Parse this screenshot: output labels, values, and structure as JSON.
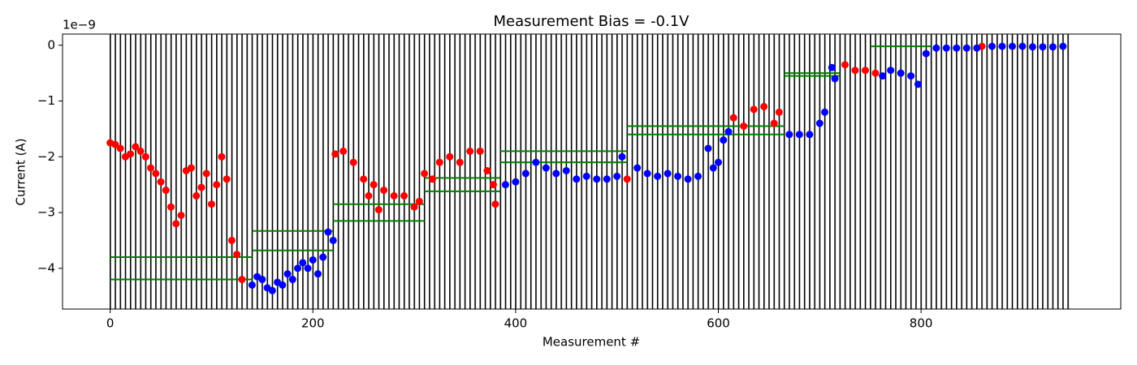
{
  "chart_data": {
    "type": "scatter",
    "title": "Measurement Bias = -0.1V",
    "xlabel": "Measurement #",
    "ylabel": "Current (A)",
    "offset_text": "1e−9",
    "xlim": [
      -47,
      997
    ],
    "ylim": [
      -4.73,
      0.2
    ],
    "xticks": [
      0,
      200,
      400,
      600,
      800
    ],
    "yticks": [
      {
        "value": -4,
        "label": "−4"
      },
      {
        "value": -3,
        "label": "−3"
      },
      {
        "value": -2,
        "label": "−2"
      },
      {
        "value": -1,
        "label": "−1"
      },
      0
    ],
    "hline_color": "#008000",
    "hlines": [
      {
        "x": [
          0,
          140
        ],
        "y": -3.8
      },
      {
        "x": [
          0,
          140
        ],
        "y": -4.2
      },
      {
        "x": [
          140,
          220
        ],
        "y": -3.33
      },
      {
        "x": [
          140,
          220
        ],
        "y": -3.68
      },
      {
        "x": [
          220,
          310
        ],
        "y": -2.85
      },
      {
        "x": [
          220,
          310
        ],
        "y": -3.15
      },
      {
        "x": [
          310,
          385
        ],
        "y": -2.38
      },
      {
        "x": [
          310,
          385
        ],
        "y": -2.62
      },
      {
        "x": [
          385,
          510
        ],
        "y": -1.9
      },
      {
        "x": [
          385,
          510
        ],
        "y": -2.1
      },
      {
        "x": [
          510,
          665
        ],
        "y": -1.45
      },
      {
        "x": [
          510,
          665
        ],
        "y": -1.6
      },
      {
        "x": [
          665,
          720
        ],
        "y": -0.5
      },
      {
        "x": [
          665,
          720
        ],
        "y": -0.55
      },
      {
        "x": [
          750,
          810
        ],
        "y": -0.02
      }
    ],
    "series": [
      {
        "color": "#ff0000",
        "x": [
          0,
          5,
          10,
          15,
          20,
          25,
          30,
          35,
          40,
          45,
          50,
          55,
          60,
          65,
          70,
          75,
          80,
          85,
          90,
          95,
          100,
          105,
          110,
          115,
          120,
          125,
          130,
          222,
          230,
          240,
          250,
          255,
          260,
          265,
          270,
          280,
          290,
          300,
          305,
          310,
          318,
          325,
          335,
          345,
          355,
          365,
          372,
          378,
          380,
          510,
          615,
          625,
          635,
          645,
          655,
          660,
          725,
          735,
          745,
          755,
          860
        ],
        "values": [
          -1.75,
          -1.78,
          -1.85,
          -2.0,
          -1.95,
          -1.82,
          -1.9,
          -2.0,
          -2.2,
          -2.3,
          -2.45,
          -2.6,
          -2.9,
          -3.2,
          -3.05,
          -2.25,
          -2.2,
          -2.7,
          -2.55,
          -2.3,
          -2.85,
          -2.5,
          -2.0,
          -2.4,
          -3.5,
          -3.75,
          -4.2,
          -1.95,
          -1.9,
          -2.1,
          -2.4,
          -2.7,
          -2.5,
          -2.95,
          -2.6,
          -2.7,
          -2.7,
          -2.9,
          -2.8,
          -2.3,
          -2.4,
          -2.1,
          -2.0,
          -2.1,
          -1.9,
          -1.9,
          -2.25,
          -2.5,
          -2.85,
          -2.4,
          -1.3,
          -1.45,
          -1.15,
          -1.1,
          -1.4,
          -1.2,
          -0.35,
          -0.45,
          -0.45,
          -0.5,
          -0.02
        ]
      },
      {
        "color": "#0000ff",
        "x": [
          140,
          145,
          150,
          155,
          160,
          165,
          170,
          175,
          180,
          185,
          190,
          195,
          200,
          205,
          210,
          215,
          220,
          390,
          400,
          410,
          420,
          430,
          440,
          450,
          460,
          470,
          480,
          490,
          500,
          505,
          520,
          530,
          540,
          550,
          560,
          570,
          580,
          590,
          595,
          600,
          605,
          610,
          670,
          680,
          690,
          700,
          705,
          712,
          715,
          762,
          770,
          780,
          790,
          797,
          805,
          815,
          825,
          835,
          845,
          855,
          870,
          880,
          890,
          900,
          910,
          920,
          930,
          940
        ],
        "values": [
          -4.3,
          -4.15,
          -4.2,
          -4.35,
          -4.4,
          -4.25,
          -4.3,
          -4.1,
          -4.2,
          -4.0,
          -3.9,
          -4.0,
          -3.85,
          -4.1,
          -3.8,
          -3.35,
          -3.5,
          -2.5,
          -2.45,
          -2.3,
          -2.1,
          -2.2,
          -2.3,
          -2.25,
          -2.4,
          -2.35,
          -2.4,
          -2.4,
          -2.35,
          -2.0,
          -2.2,
          -2.3,
          -2.35,
          -2.3,
          -2.35,
          -2.4,
          -2.35,
          -1.85,
          -2.2,
          -2.1,
          -1.7,
          -1.55,
          -1.6,
          -1.6,
          -1.6,
          -1.4,
          -1.2,
          -0.4,
          -0.6,
          -0.55,
          -0.45,
          -0.5,
          -0.55,
          -0.7,
          -0.15,
          -0.05,
          -0.05,
          -0.05,
          -0.05,
          -0.05,
          -0.02,
          -0.02,
          -0.02,
          -0.02,
          -0.03,
          -0.03,
          -0.03,
          -0.02
        ]
      }
    ]
  }
}
